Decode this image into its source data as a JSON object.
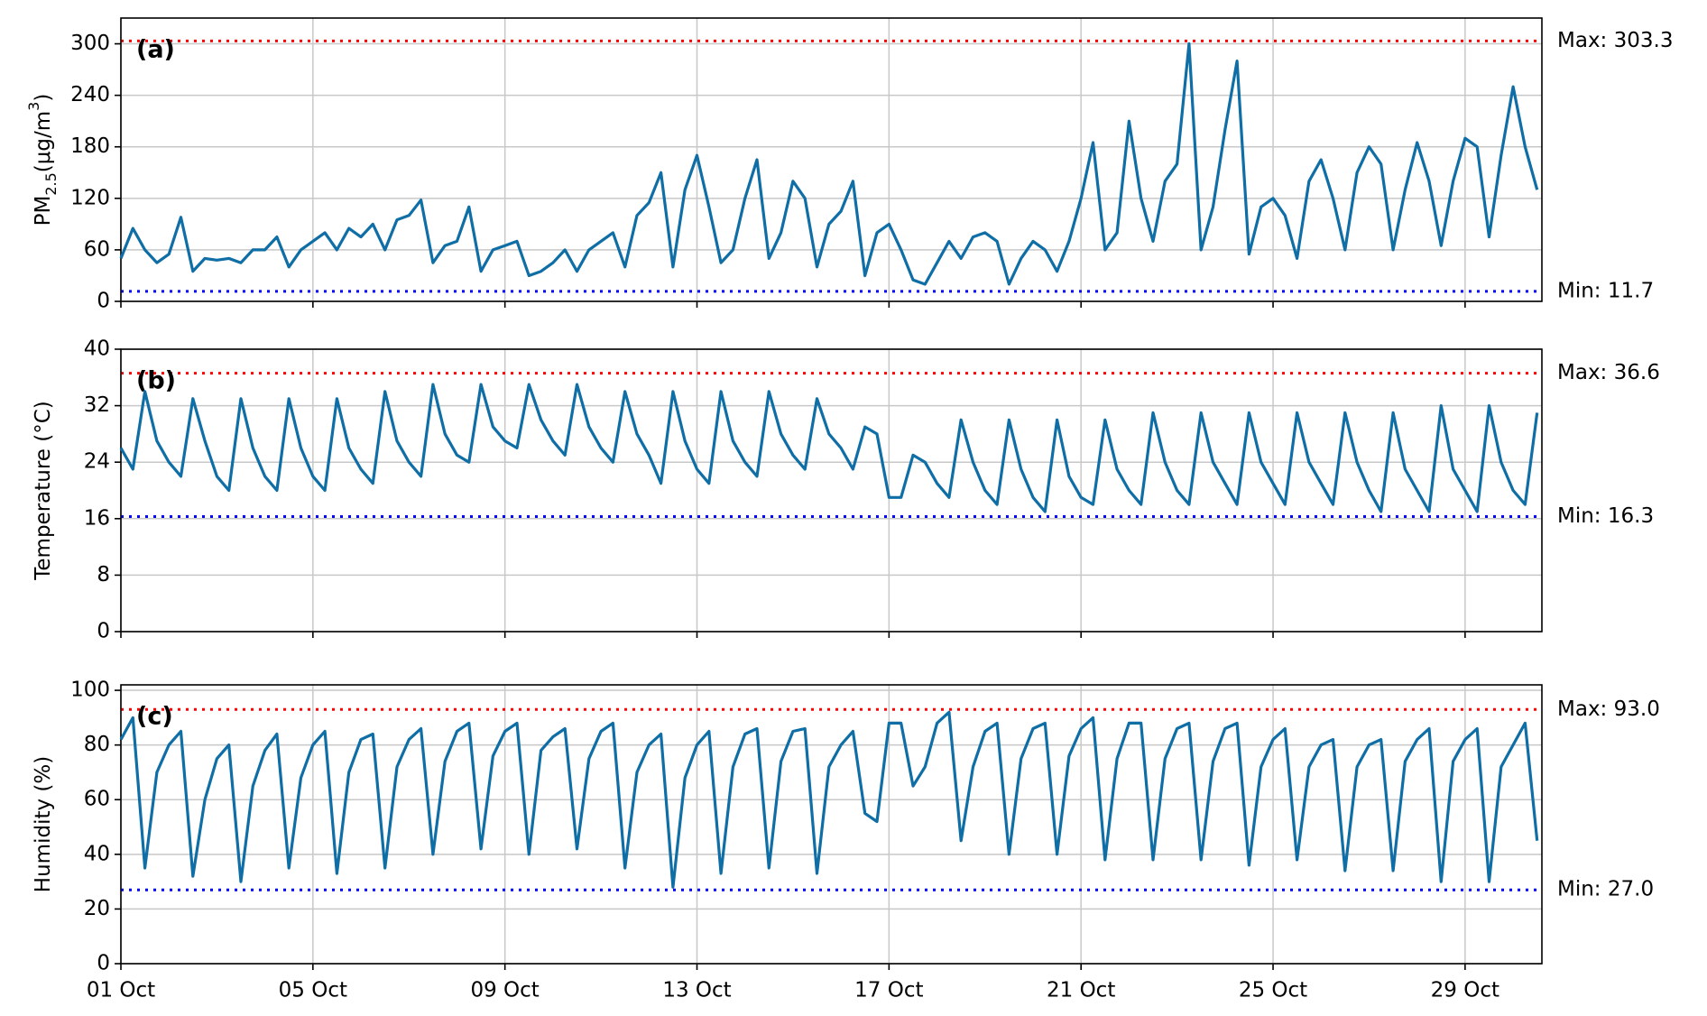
{
  "chart_data": [
    {
      "type": "line",
      "panel_label": "(a)",
      "ylabel": [
        {
          "text": "PM"
        },
        {
          "text": "2.5",
          "shift": "sub"
        },
        {
          "text": "(μg/m"
        },
        {
          "text": "3",
          "shift": "sup"
        },
        {
          "text": ")"
        }
      ],
      "color": "#0e6ea5",
      "grid": true,
      "xlim": [
        0,
        29.6
      ],
      "ylim": [
        0,
        330
      ],
      "yticks": [
        0,
        60,
        120,
        180,
        240,
        300
      ],
      "xticks": [
        0,
        4,
        8,
        12,
        16,
        20,
        24,
        28
      ],
      "hlines": [
        {
          "value": 303.3,
          "label": "Max: 303.3",
          "color": "#ff0000"
        },
        {
          "value": 11.7,
          "label": "Min: 11.7",
          "color": "#0000ff"
        }
      ],
      "x": [
        0,
        0.25,
        0.5,
        0.75,
        1,
        1.25,
        1.5,
        1.75,
        2,
        2.25,
        2.5,
        2.75,
        3,
        3.25,
        3.5,
        3.75,
        4,
        4.25,
        4.5,
        4.75,
        5,
        5.25,
        5.5,
        5.75,
        6,
        6.25,
        6.5,
        6.75,
        7,
        7.25,
        7.5,
        7.75,
        8,
        8.25,
        8.5,
        8.75,
        9,
        9.25,
        9.5,
        9.75,
        10,
        10.25,
        10.5,
        10.75,
        11,
        11.25,
        11.5,
        11.75,
        12,
        12.25,
        12.5,
        12.75,
        13,
        13.25,
        13.5,
        13.75,
        14,
        14.25,
        14.5,
        14.75,
        15,
        15.25,
        15.5,
        15.75,
        16,
        16.25,
        16.5,
        16.75,
        17,
        17.25,
        17.5,
        17.75,
        18,
        18.25,
        18.5,
        18.75,
        19,
        19.25,
        19.5,
        19.75,
        20,
        20.25,
        20.5,
        20.75,
        21,
        21.25,
        21.5,
        21.75,
        22,
        22.25,
        22.5,
        22.75,
        23,
        23.25,
        23.5,
        23.75,
        24,
        24.25,
        24.5,
        24.75,
        25,
        25.25,
        25.5,
        25.75,
        26,
        26.25,
        26.5,
        26.75,
        27,
        27.25,
        27.5,
        27.75,
        28,
        28.25,
        28.5,
        28.75,
        29,
        29.25,
        29.5
      ],
      "values": [
        50,
        85,
        60,
        45,
        55,
        98,
        35,
        50,
        48,
        50,
        45,
        60,
        60,
        75,
        40,
        60,
        70,
        80,
        60,
        85,
        75,
        90,
        60,
        95,
        100,
        118,
        45,
        65,
        70,
        110,
        35,
        60,
        65,
        70,
        30,
        35,
        45,
        60,
        35,
        60,
        70,
        80,
        40,
        100,
        115,
        150,
        40,
        130,
        170,
        110,
        45,
        60,
        120,
        165,
        50,
        80,
        140,
        120,
        40,
        90,
        105,
        140,
        30,
        80,
        90,
        60,
        25,
        20,
        45,
        70,
        50,
        75,
        80,
        70,
        20,
        50,
        70,
        60,
        35,
        70,
        120,
        185,
        60,
        80,
        210,
        120,
        70,
        140,
        160,
        300,
        60,
        110,
        200,
        280,
        55,
        110,
        120,
        100,
        50,
        140,
        165,
        120,
        60,
        150,
        180,
        160,
        60,
        130,
        185,
        140,
        65,
        140,
        190,
        180,
        75,
        170,
        250,
        180,
        130
      ]
    },
    {
      "type": "line",
      "panel_label": "(b)",
      "ylabel": [
        {
          "text": "Temperature (°C)"
        }
      ],
      "color": "#0e6ea5",
      "grid": true,
      "xlim": [
        0,
        29.6
      ],
      "ylim": [
        0,
        40
      ],
      "yticks": [
        0,
        8,
        16,
        24,
        32,
        40
      ],
      "xticks": [
        0,
        4,
        8,
        12,
        16,
        20,
        24,
        28
      ],
      "hlines": [
        {
          "value": 36.6,
          "label": "Max: 36.6",
          "color": "#ff0000"
        },
        {
          "value": 16.3,
          "label": "Min: 16.3",
          "color": "#0000ff"
        }
      ],
      "x": [
        0,
        0.25,
        0.5,
        0.75,
        1,
        1.25,
        1.5,
        1.75,
        2,
        2.25,
        2.5,
        2.75,
        3,
        3.25,
        3.5,
        3.75,
        4,
        4.25,
        4.5,
        4.75,
        5,
        5.25,
        5.5,
        5.75,
        6,
        6.25,
        6.5,
        6.75,
        7,
        7.25,
        7.5,
        7.75,
        8,
        8.25,
        8.5,
        8.75,
        9,
        9.25,
        9.5,
        9.75,
        10,
        10.25,
        10.5,
        10.75,
        11,
        11.25,
        11.5,
        11.75,
        12,
        12.25,
        12.5,
        12.75,
        13,
        13.25,
        13.5,
        13.75,
        14,
        14.25,
        14.5,
        14.75,
        15,
        15.25,
        15.5,
        15.75,
        16,
        16.25,
        16.5,
        16.75,
        17,
        17.25,
        17.5,
        17.75,
        18,
        18.25,
        18.5,
        18.75,
        19,
        19.25,
        19.5,
        19.75,
        20,
        20.25,
        20.5,
        20.75,
        21,
        21.25,
        21.5,
        21.75,
        22,
        22.25,
        22.5,
        22.75,
        23,
        23.25,
        23.5,
        23.75,
        24,
        24.25,
        24.5,
        24.75,
        25,
        25.25,
        25.5,
        25.75,
        26,
        26.25,
        26.5,
        26.75,
        27,
        27.25,
        27.5,
        27.75,
        28,
        28.25,
        28.5,
        28.75,
        29,
        29.25,
        29.5
      ],
      "values": [
        26,
        23,
        34,
        27,
        24,
        22,
        33,
        27,
        22,
        20,
        33,
        26,
        22,
        20,
        33,
        26,
        22,
        20,
        33,
        26,
        23,
        21,
        34,
        27,
        24,
        22,
        35,
        28,
        25,
        24,
        35,
        29,
        27,
        26,
        35,
        30,
        27,
        25,
        35,
        29,
        26,
        24,
        34,
        28,
        25,
        21,
        34,
        27,
        23,
        21,
        34,
        27,
        24,
        22,
        34,
        28,
        25,
        23,
        33,
        28,
        26,
        23,
        29,
        28,
        19,
        19,
        25,
        24,
        21,
        19,
        30,
        24,
        20,
        18,
        30,
        23,
        19,
        17,
        30,
        22,
        19,
        18,
        30,
        23,
        20,
        18,
        31,
        24,
        20,
        18,
        31,
        24,
        21,
        18,
        31,
        24,
        21,
        18,
        31,
        24,
        21,
        18,
        31,
        24,
        20,
        17,
        31,
        23,
        20,
        17,
        32,
        23,
        20,
        17,
        32,
        24,
        20,
        18,
        31
      ]
    },
    {
      "type": "line",
      "panel_label": "(c)",
      "ylabel": [
        {
          "text": "Humidity (%)"
        }
      ],
      "color": "#0e6ea5",
      "grid": true,
      "xlim": [
        0,
        29.6
      ],
      "ylim": [
        0,
        102
      ],
      "yticks": [
        0,
        20,
        40,
        60,
        80,
        100
      ],
      "xticks": [
        {
          "value": 0,
          "label": "01 Oct"
        },
        {
          "value": 4,
          "label": "05 Oct"
        },
        {
          "value": 8,
          "label": "09 Oct"
        },
        {
          "value": 12,
          "label": "13 Oct"
        },
        {
          "value": 16,
          "label": "17 Oct"
        },
        {
          "value": 20,
          "label": "21 Oct"
        },
        {
          "value": 24,
          "label": "25 Oct"
        },
        {
          "value": 28,
          "label": "29 Oct"
        }
      ],
      "hlines": [
        {
          "value": 93.0,
          "label": "Max: 93.0",
          "color": "#ff0000"
        },
        {
          "value": 27.0,
          "label": "Min: 27.0",
          "color": "#0000ff"
        }
      ],
      "x": [
        0,
        0.25,
        0.5,
        0.75,
        1,
        1.25,
        1.5,
        1.75,
        2,
        2.25,
        2.5,
        2.75,
        3,
        3.25,
        3.5,
        3.75,
        4,
        4.25,
        4.5,
        4.75,
        5,
        5.25,
        5.5,
        5.75,
        6,
        6.25,
        6.5,
        6.75,
        7,
        7.25,
        7.5,
        7.75,
        8,
        8.25,
        8.5,
        8.75,
        9,
        9.25,
        9.5,
        9.75,
        10,
        10.25,
        10.5,
        10.75,
        11,
        11.25,
        11.5,
        11.75,
        12,
        12.25,
        12.5,
        12.75,
        13,
        13.25,
        13.5,
        13.75,
        14,
        14.25,
        14.5,
        14.75,
        15,
        15.25,
        15.5,
        15.75,
        16,
        16.25,
        16.5,
        16.75,
        17,
        17.25,
        17.5,
        17.75,
        18,
        18.25,
        18.5,
        18.75,
        19,
        19.25,
        19.5,
        19.75,
        20,
        20.25,
        20.5,
        20.75,
        21,
        21.25,
        21.5,
        21.75,
        22,
        22.25,
        22.5,
        22.75,
        23,
        23.25,
        23.5,
        23.75,
        24,
        24.25,
        24.5,
        24.75,
        25,
        25.25,
        25.5,
        25.75,
        26,
        26.25,
        26.5,
        26.75,
        27,
        27.25,
        27.5,
        27.75,
        28,
        28.25,
        28.5,
        28.75,
        29,
        29.25,
        29.5
      ],
      "values": [
        82,
        90,
        35,
        70,
        80,
        85,
        32,
        60,
        75,
        80,
        30,
        65,
        78,
        84,
        35,
        68,
        80,
        85,
        33,
        70,
        82,
        84,
        35,
        72,
        82,
        86,
        40,
        74,
        85,
        88,
        42,
        76,
        85,
        88,
        40,
        78,
        83,
        86,
        42,
        75,
        85,
        88,
        35,
        70,
        80,
        84,
        28,
        68,
        80,
        85,
        33,
        72,
        84,
        86,
        35,
        74,
        85,
        86,
        33,
        72,
        80,
        85,
        55,
        52,
        88,
        88,
        65,
        72,
        88,
        92,
        45,
        72,
        85,
        88,
        40,
        75,
        86,
        88,
        40,
        76,
        86,
        90,
        38,
        75,
        88,
        88,
        38,
        75,
        86,
        88,
        38,
        74,
        86,
        88,
        36,
        72,
        82,
        86,
        38,
        72,
        80,
        82,
        34,
        72,
        80,
        82,
        34,
        74,
        82,
        86,
        30,
        74,
        82,
        86,
        30,
        72,
        80,
        88,
        45
      ]
    }
  ]
}
